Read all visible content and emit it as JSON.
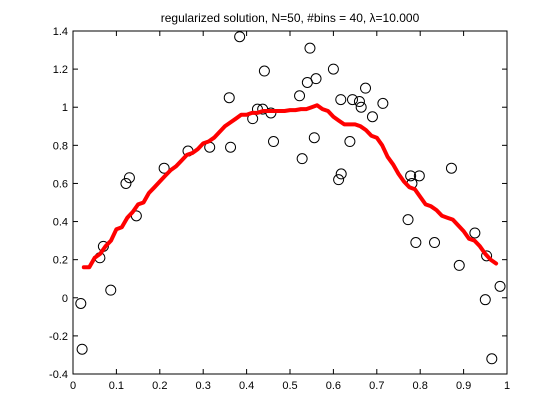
{
  "chart_data": {
    "type": "scatter",
    "title": "regularized solution, N=50, #bins = 40, λ=10.000",
    "xlabel": "",
    "ylabel": "",
    "xlim": [
      0,
      1
    ],
    "ylim": [
      -0.4,
      1.4
    ],
    "xticks": [
      "0",
      "0.1",
      "0.2",
      "0.3",
      "0.4",
      "0.5",
      "0.6",
      "0.7",
      "0.8",
      "0.9",
      "1"
    ],
    "yticks": [
      "1.4",
      "1.2",
      "1",
      "0.8",
      "0.6",
      "0.4",
      "0.2",
      "0",
      "-0.2",
      "-0.4"
    ],
    "grid": false,
    "colors": {
      "points": "#000000",
      "fit": "#ff0000",
      "axes": "#000000"
    },
    "series": [
      {
        "kind": "points",
        "marker": "open-circle",
        "x": [
          0.018,
          0.021,
          0.062,
          0.07,
          0.087,
          0.122,
          0.13,
          0.146,
          0.21,
          0.265,
          0.315,
          0.36,
          0.363,
          0.384,
          0.414,
          0.425,
          0.437,
          0.441,
          0.456,
          0.462,
          0.522,
          0.528,
          0.54,
          0.546,
          0.556,
          0.56,
          0.6,
          0.612,
          0.617,
          0.618,
          0.638,
          0.644,
          0.66,
          0.664,
          0.674,
          0.69,
          0.714,
          0.772,
          0.778,
          0.781,
          0.79,
          0.798,
          0.833,
          0.872,
          0.89,
          0.926,
          0.95,
          0.953,
          0.965,
          0.984
        ],
        "y": [
          -0.03,
          -0.27,
          0.21,
          0.27,
          0.04,
          0.6,
          0.63,
          0.43,
          0.68,
          0.77,
          0.79,
          1.05,
          0.79,
          1.37,
          0.94,
          0.99,
          0.99,
          1.19,
          0.97,
          0.82,
          1.06,
          0.73,
          1.13,
          1.31,
          0.84,
          1.15,
          1.2,
          0.62,
          1.04,
          0.65,
          0.82,
          1.04,
          1.03,
          1.0,
          1.1,
          0.95,
          1.02,
          0.41,
          0.64,
          0.6,
          0.29,
          0.64,
          0.29,
          0.68,
          0.17,
          0.34,
          -0.01,
          0.22,
          -0.32,
          0.06
        ]
      },
      {
        "kind": "line",
        "x": [
          0.025,
          0.0375,
          0.05,
          0.0625,
          0.075,
          0.0875,
          0.1,
          0.1125,
          0.125,
          0.1375,
          0.15,
          0.1625,
          0.175,
          0.1875,
          0.2,
          0.2125,
          0.225,
          0.2375,
          0.25,
          0.2625,
          0.275,
          0.2875,
          0.3,
          0.3125,
          0.325,
          0.3375,
          0.35,
          0.3625,
          0.375,
          0.3875,
          0.4,
          0.4125,
          0.425,
          0.4375,
          0.45,
          0.4625,
          0.475,
          0.4875,
          0.5,
          0.5125,
          0.525,
          0.5375,
          0.55,
          0.5625,
          0.575,
          0.5875,
          0.6,
          0.6125,
          0.625,
          0.6375,
          0.65,
          0.6625,
          0.675,
          0.6875,
          0.7,
          0.7125,
          0.725,
          0.7375,
          0.75,
          0.7625,
          0.775,
          0.7875,
          0.8,
          0.8125,
          0.825,
          0.8375,
          0.85,
          0.8625,
          0.875,
          0.8875,
          0.9,
          0.9125,
          0.925,
          0.9375,
          0.95,
          0.9625,
          0.975
        ],
        "y": [
          0.16,
          0.16,
          0.21,
          0.23,
          0.27,
          0.3,
          0.36,
          0.37,
          0.42,
          0.45,
          0.49,
          0.5,
          0.55,
          0.58,
          0.61,
          0.64,
          0.67,
          0.69,
          0.72,
          0.75,
          0.76,
          0.78,
          0.81,
          0.82,
          0.84,
          0.87,
          0.9,
          0.92,
          0.94,
          0.96,
          0.96,
          0.97,
          0.97,
          0.98,
          0.98,
          0.98,
          0.98,
          0.98,
          0.985,
          0.985,
          0.99,
          0.99,
          1.0,
          1.01,
          0.99,
          0.98,
          0.95,
          0.93,
          0.91,
          0.91,
          0.91,
          0.9,
          0.88,
          0.85,
          0.84,
          0.8,
          0.74,
          0.7,
          0.65,
          0.61,
          0.58,
          0.57,
          0.53,
          0.49,
          0.48,
          0.46,
          0.43,
          0.42,
          0.41,
          0.38,
          0.35,
          0.31,
          0.3,
          0.27,
          0.23,
          0.2,
          0.18
        ]
      }
    ]
  }
}
